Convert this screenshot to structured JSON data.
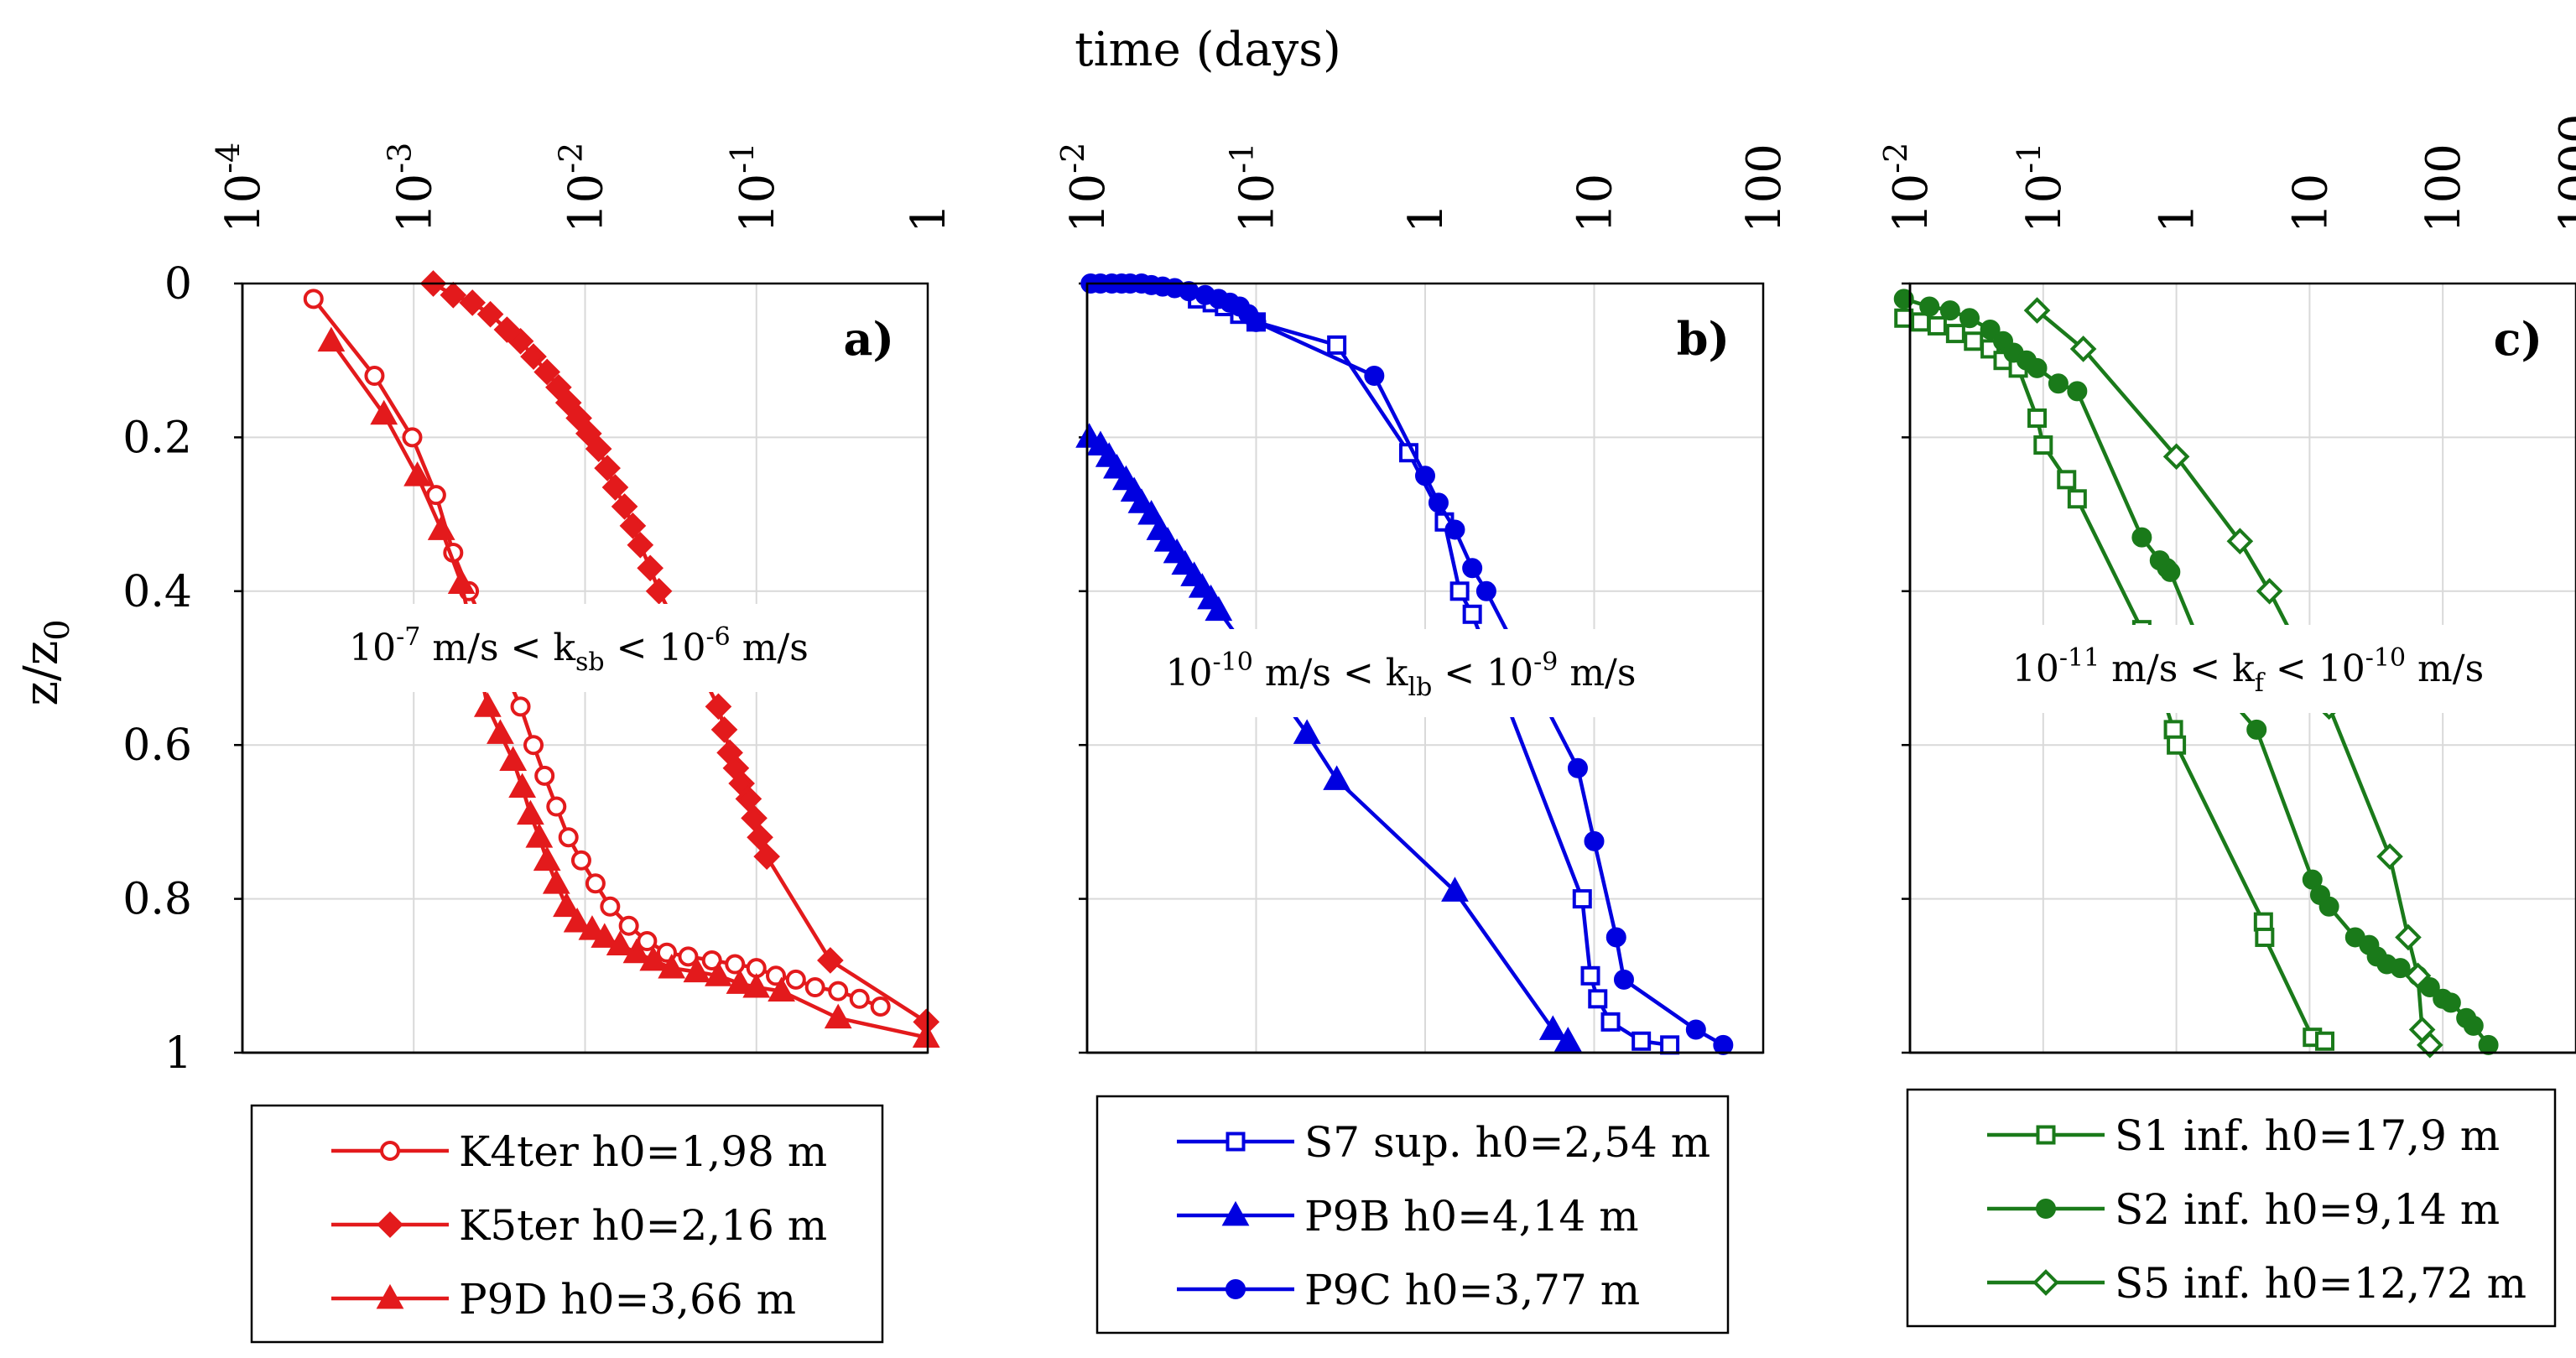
{
  "figure": {
    "top_label": "time (days)",
    "y_axis_label": "z/z",
    "y_axis_label_sub": "0"
  },
  "chart_data": [
    {
      "type": "line",
      "panel": "a)",
      "x_scale": "log",
      "xlim": [
        0.0001,
        1
      ],
      "ylim": [
        1,
        0
      ],
      "x_tick_labels": [
        {
          "value": 0.0001,
          "base": "10",
          "exp": "-4"
        },
        {
          "value": 0.001,
          "base": "10",
          "exp": "-3"
        },
        {
          "value": 0.01,
          "base": "10",
          "exp": "-2"
        },
        {
          "value": 0.1,
          "base": "10",
          "exp": "-1"
        },
        {
          "value": 1,
          "base": "1",
          "exp": ""
        }
      ],
      "y_ticks": [
        0,
        0.2,
        0.4,
        0.6,
        0.8,
        1
      ],
      "y_tick_labels": [
        "0",
        "0.2",
        "0.4",
        "0.6",
        "0.8",
        "1"
      ],
      "grid": true,
      "color": "#e31a1c",
      "annotation": {
        "pre": "10",
        "sup1": "-7",
        "mid": " m/s < k",
        "sub": "sb",
        "mid2": " < 10",
        "sup2": "-6",
        "post": " m/s"
      },
      "series": [
        {
          "name": "K4ter h0=1,98 m",
          "marker": "circle-open",
          "points": [
            [
              0.00026,
              0.02
            ],
            [
              0.00059,
              0.12
            ],
            [
              0.00098,
              0.2
            ],
            [
              0.00135,
              0.275
            ],
            [
              0.0017,
              0.35
            ],
            [
              0.0021,
              0.4
            ],
            [
              0.0042,
              0.55
            ],
            [
              0.005,
              0.6
            ],
            [
              0.0058,
              0.64
            ],
            [
              0.0068,
              0.68
            ],
            [
              0.008,
              0.72
            ],
            [
              0.0095,
              0.75
            ],
            [
              0.0115,
              0.78
            ],
            [
              0.014,
              0.81
            ],
            [
              0.018,
              0.835
            ],
            [
              0.023,
              0.855
            ],
            [
              0.03,
              0.87
            ],
            [
              0.04,
              0.875
            ],
            [
              0.055,
              0.88
            ],
            [
              0.075,
              0.885
            ],
            [
              0.1,
              0.89
            ],
            [
              0.13,
              0.9
            ],
            [
              0.17,
              0.905
            ],
            [
              0.22,
              0.915
            ],
            [
              0.3,
              0.92
            ],
            [
              0.4,
              0.93
            ],
            [
              0.53,
              0.94
            ]
          ]
        },
        {
          "name": "K5ter h0=2,16 m",
          "marker": "diamond-filled",
          "points": [
            [
              0.0013,
              0.0
            ],
            [
              0.0017,
              0.015
            ],
            [
              0.0022,
              0.025
            ],
            [
              0.0028,
              0.04
            ],
            [
              0.0035,
              0.06
            ],
            [
              0.0042,
              0.075
            ],
            [
              0.005,
              0.095
            ],
            [
              0.006,
              0.115
            ],
            [
              0.007,
              0.135
            ],
            [
              0.008,
              0.155
            ],
            [
              0.0092,
              0.175
            ],
            [
              0.0105,
              0.195
            ],
            [
              0.012,
              0.215
            ],
            [
              0.0135,
              0.24
            ],
            [
              0.015,
              0.265
            ],
            [
              0.017,
              0.29
            ],
            [
              0.019,
              0.315
            ],
            [
              0.021,
              0.34
            ],
            [
              0.024,
              0.37
            ],
            [
              0.027,
              0.4
            ],
            [
              0.06,
              0.55
            ],
            [
              0.065,
              0.58
            ],
            [
              0.07,
              0.61
            ],
            [
              0.076,
              0.63
            ],
            [
              0.082,
              0.65
            ],
            [
              0.09,
              0.67
            ],
            [
              0.097,
              0.695
            ],
            [
              0.105,
              0.72
            ],
            [
              0.115,
              0.745
            ],
            [
              0.27,
              0.88
            ],
            [
              0.98,
              0.96
            ]
          ]
        },
        {
          "name": "P9D h0=3,66 m",
          "marker": "triangle-filled",
          "points": [
            [
              0.00033,
              0.075
            ],
            [
              0.00067,
              0.17
            ],
            [
              0.00105,
              0.25
            ],
            [
              0.00145,
              0.32
            ],
            [
              0.0019,
              0.39
            ],
            [
              0.0027,
              0.55
            ],
            [
              0.0032,
              0.585
            ],
            [
              0.0038,
              0.62
            ],
            [
              0.0043,
              0.655
            ],
            [
              0.0048,
              0.69
            ],
            [
              0.0054,
              0.72
            ],
            [
              0.006,
              0.75
            ],
            [
              0.0068,
              0.78
            ],
            [
              0.0078,
              0.81
            ],
            [
              0.009,
              0.83
            ],
            [
              0.011,
              0.84
            ],
            [
              0.013,
              0.85
            ],
            [
              0.016,
              0.86
            ],
            [
              0.02,
              0.87
            ],
            [
              0.025,
              0.88
            ],
            [
              0.032,
              0.89
            ],
            [
              0.045,
              0.895
            ],
            [
              0.06,
              0.9
            ],
            [
              0.08,
              0.91
            ],
            [
              0.1,
              0.915
            ],
            [
              0.14,
              0.92
            ],
            [
              0.3,
              0.955
            ],
            [
              0.98,
              0.98
            ]
          ]
        }
      ]
    },
    {
      "type": "line",
      "panel": "b)",
      "x_scale": "log",
      "xlim": [
        0.01,
        100
      ],
      "ylim": [
        1,
        0
      ],
      "x_tick_labels": [
        {
          "value": 0.01,
          "base": "10",
          "exp": "-2"
        },
        {
          "value": 0.1,
          "base": "10",
          "exp": "-1"
        },
        {
          "value": 1,
          "base": "1",
          "exp": ""
        },
        {
          "value": 10,
          "base": "10",
          "exp": ""
        },
        {
          "value": 100,
          "base": "100",
          "exp": ""
        }
      ],
      "y_ticks": [
        0,
        0.2,
        0.4,
        0.6,
        0.8,
        1
      ],
      "grid": true,
      "color": "#0000e0",
      "annotation": {
        "pre": "10",
        "sup1": "-10",
        "mid": " m/s < k",
        "sub": "lb",
        "mid2": " < 10",
        "sup2": "-9",
        "post": " m/s"
      },
      "series": [
        {
          "name": "S7 sup. h0=2,54 m",
          "marker": "square-open",
          "points": [
            [
              0.045,
              0.02
            ],
            [
              0.055,
              0.025
            ],
            [
              0.065,
              0.03
            ],
            [
              0.08,
              0.04
            ],
            [
              0.1,
              0.05
            ],
            [
              0.3,
              0.08
            ],
            [
              0.8,
              0.22
            ],
            [
              1.3,
              0.31
            ],
            [
              1.6,
              0.4
            ],
            [
              1.9,
              0.43
            ],
            [
              8.5,
              0.8
            ],
            [
              9.5,
              0.9
            ],
            [
              10.5,
              0.93
            ],
            [
              12.5,
              0.96
            ],
            [
              19,
              0.985
            ],
            [
              28,
              0.99
            ]
          ]
        },
        {
          "name": "P9B h0=4,14 m",
          "marker": "triangle-filled",
          "points": [
            [
              0.0103,
              0.2
            ],
            [
              0.012,
              0.21
            ],
            [
              0.0135,
              0.225
            ],
            [
              0.015,
              0.24
            ],
            [
              0.017,
              0.255
            ],
            [
              0.019,
              0.27
            ],
            [
              0.021,
              0.285
            ],
            [
              0.024,
              0.3
            ],
            [
              0.027,
              0.32
            ],
            [
              0.03,
              0.335
            ],
            [
              0.034,
              0.35
            ],
            [
              0.038,
              0.365
            ],
            [
              0.043,
              0.38
            ],
            [
              0.048,
              0.395
            ],
            [
              0.054,
              0.41
            ],
            [
              0.06,
              0.425
            ],
            [
              0.2,
              0.585
            ],
            [
              0.3,
              0.645
            ],
            [
              1.5,
              0.79
            ],
            [
              5.7,
              0.97
            ],
            [
              7.0,
              0.985
            ]
          ]
        },
        {
          "name": "P9C h0=3,77 m",
          "marker": "circle-filled",
          "points": [
            [
              0.0105,
              0.0
            ],
            [
              0.012,
              0.0
            ],
            [
              0.014,
              0.0
            ],
            [
              0.016,
              0.0
            ],
            [
              0.018,
              0.0
            ],
            [
              0.021,
              0.0
            ],
            [
              0.024,
              0.002
            ],
            [
              0.028,
              0.004
            ],
            [
              0.033,
              0.006
            ],
            [
              0.04,
              0.01
            ],
            [
              0.05,
              0.015
            ],
            [
              0.06,
              0.02
            ],
            [
              0.07,
              0.025
            ],
            [
              0.08,
              0.03
            ],
            [
              0.09,
              0.04
            ],
            [
              0.1,
              0.05
            ],
            [
              0.5,
              0.12
            ],
            [
              1.0,
              0.25
            ],
            [
              1.2,
              0.285
            ],
            [
              1.5,
              0.32
            ],
            [
              1.9,
              0.37
            ],
            [
              2.3,
              0.4
            ],
            [
              8.0,
              0.63
            ],
            [
              10.0,
              0.725
            ],
            [
              13.5,
              0.85
            ],
            [
              15,
              0.905
            ],
            [
              40,
              0.97
            ],
            [
              58,
              0.99
            ]
          ]
        }
      ]
    },
    {
      "type": "line",
      "panel": "c)",
      "x_scale": "log",
      "xlim": [
        0.01,
        1000
      ],
      "ylim": [
        1,
        0
      ],
      "x_tick_labels": [
        {
          "value": 0.01,
          "base": "10",
          "exp": "-2"
        },
        {
          "value": 0.1,
          "base": "10",
          "exp": "-1"
        },
        {
          "value": 1,
          "base": "1",
          "exp": ""
        },
        {
          "value": 10,
          "base": "10",
          "exp": ""
        },
        {
          "value": 100,
          "base": "100",
          "exp": ""
        },
        {
          "value": 1000,
          "base": "1000",
          "exp": ""
        }
      ],
      "y_ticks": [
        0,
        0.2,
        0.4,
        0.6,
        0.8,
        1
      ],
      "grid": true,
      "color": "#1a7a1a",
      "annotation": {
        "pre": "10",
        "sup1": "-11",
        "mid": " m/s < k",
        "sub": "f",
        "mid2": " < 10",
        "sup2": "-10",
        "post": " m/s"
      },
      "series": [
        {
          "name": "S1 inf. h0=17,9 m",
          "marker": "square-open",
          "points": [
            [
              0.009,
              0.045
            ],
            [
              0.012,
              0.05
            ],
            [
              0.016,
              0.055
            ],
            [
              0.022,
              0.065
            ],
            [
              0.03,
              0.075
            ],
            [
              0.04,
              0.085
            ],
            [
              0.05,
              0.1
            ],
            [
              0.065,
              0.11
            ],
            [
              0.09,
              0.175
            ],
            [
              0.1,
              0.21
            ],
            [
              0.15,
              0.255
            ],
            [
              0.18,
              0.28
            ],
            [
              0.55,
              0.45
            ],
            [
              0.95,
              0.58
            ],
            [
              1.0,
              0.6
            ],
            [
              4.5,
              0.83
            ],
            [
              4.6,
              0.85
            ],
            [
              10.5,
              0.98
            ],
            [
              13,
              0.985
            ]
          ]
        },
        {
          "name": "S2 inf. h0=9,14 m",
          "marker": "circle-filled",
          "points": [
            [
              0.009,
              0.02
            ],
            [
              0.014,
              0.03
            ],
            [
              0.02,
              0.035
            ],
            [
              0.028,
              0.045
            ],
            [
              0.04,
              0.06
            ],
            [
              0.05,
              0.075
            ],
            [
              0.06,
              0.09
            ],
            [
              0.075,
              0.1
            ],
            [
              0.09,
              0.11
            ],
            [
              0.13,
              0.13
            ],
            [
              0.18,
              0.14
            ],
            [
              0.55,
              0.33
            ],
            [
              0.75,
              0.36
            ],
            [
              0.85,
              0.37
            ],
            [
              0.9,
              0.375
            ],
            [
              2.0,
              0.52
            ],
            [
              4.0,
              0.58
            ],
            [
              10.5,
              0.775
            ],
            [
              12,
              0.795
            ],
            [
              14,
              0.81
            ],
            [
              22,
              0.85
            ],
            [
              28,
              0.86
            ],
            [
              32,
              0.875
            ],
            [
              38,
              0.885
            ],
            [
              48,
              0.89
            ],
            [
              65,
              0.9
            ],
            [
              80,
              0.915
            ],
            [
              100,
              0.93
            ],
            [
              115,
              0.935
            ],
            [
              150,
              0.955
            ],
            [
              170,
              0.965
            ],
            [
              220,
              0.99
            ]
          ]
        },
        {
          "name": "S5 inf. h0=12,72 m",
          "marker": "diamond-open",
          "points": [
            [
              0.09,
              0.035
            ],
            [
              0.2,
              0.085
            ],
            [
              1.0,
              0.225
            ],
            [
              3.0,
              0.335
            ],
            [
              5.0,
              0.4
            ],
            [
              14,
              0.55
            ],
            [
              40,
              0.745
            ],
            [
              55,
              0.85
            ],
            [
              65,
              0.9
            ],
            [
              70,
              0.97
            ],
            [
              80,
              0.99
            ]
          ]
        }
      ]
    }
  ]
}
